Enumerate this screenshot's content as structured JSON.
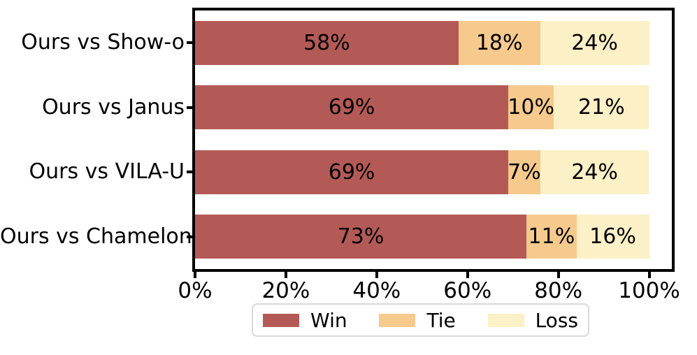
{
  "chart_data": {
    "type": "bar",
    "orientation": "horizontal",
    "stacked": true,
    "title": "",
    "xlabel": "",
    "ylabel": "",
    "categories": [
      "Ours vs Show-o",
      "Ours vs Janus",
      "Ours vs VILA-U",
      "Ours vs Chamelon"
    ],
    "series": [
      {
        "name": "Win",
        "color": "#b45a56",
        "values": [
          58,
          69,
          69,
          73
        ]
      },
      {
        "name": "Tie",
        "color": "#f6ca8d",
        "values": [
          18,
          10,
          7,
          11
        ]
      },
      {
        "name": "Loss",
        "color": "#fbf0c6",
        "values": [
          24,
          21,
          24,
          16
        ]
      }
    ],
    "value_label_suffix": "%",
    "xticks": [
      "0%",
      "20%",
      "40%",
      "60%",
      "80%",
      "100%"
    ],
    "xlim": [
      0,
      105
    ],
    "grid": false,
    "legend": {
      "position": "bottom",
      "labels": [
        "Win",
        "Tie",
        "Loss"
      ]
    },
    "colors": {
      "text": "#000000",
      "frame": "#000000",
      "background": "#ffffff",
      "legend_border": "#d9d9d9"
    }
  }
}
